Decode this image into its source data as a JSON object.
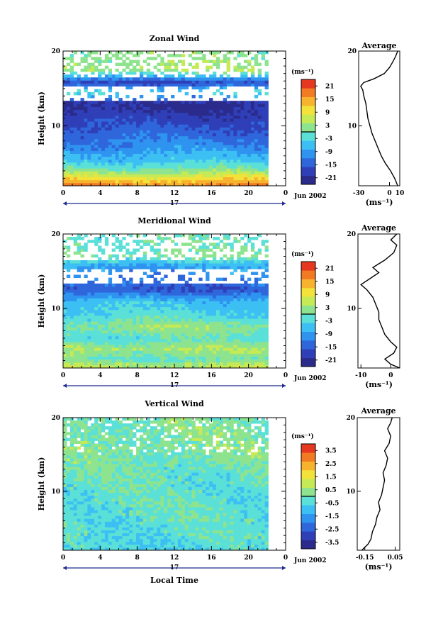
{
  "chart_data": [
    {
      "type": "heatmap",
      "title": "Zonal Wind",
      "xlabel": "",
      "ylabel": "Height (km)",
      "x_ticks": [
        "0",
        "4",
        "8",
        "12",
        "16",
        "20",
        "0"
      ],
      "y_ticks": [
        "10",
        "20"
      ],
      "xlim": [
        0,
        24
      ],
      "ylim": [
        2,
        20
      ],
      "date_day": "17",
      "date_label": "Jun 2002",
      "colorbar": {
        "unit_label": "(ms⁻¹)",
        "ticks": [
          "21",
          "15",
          "9",
          "3",
          "-3",
          "-9",
          "-15",
          "-21"
        ],
        "range": [
          -24,
          24
        ]
      },
      "data_gaps_hours": [
        [
          8.6,
          8.8
        ],
        [
          9.6,
          9.85
        ]
      ],
      "field_layers": [
        {
          "h": 19.5,
          "v": 2
        },
        {
          "h": 17.5,
          "v": 4
        },
        {
          "h": 15.8,
          "v": -18
        },
        {
          "h": 14.5,
          "v": -2
        },
        {
          "h": 13.0,
          "v": -22
        },
        {
          "h": 11.0,
          "v": -18
        },
        {
          "h": 9.0,
          "v": -14
        },
        {
          "h": 7.0,
          "v": -10
        },
        {
          "h": 5.3,
          "v": -5
        },
        {
          "h": 4.0,
          "v": 2
        },
        {
          "h": 3.0,
          "v": 10
        },
        {
          "h": 2.2,
          "v": 16
        }
      ],
      "average_panel": {
        "title": "Average",
        "xlabel": "(ms⁻¹)",
        "x_ticks": [
          "-30",
          "0",
          "10"
        ],
        "y_ticks": [
          "10",
          "20"
        ],
        "xlim": [
          -30,
          10
        ],
        "ylim": [
          2,
          20
        ],
        "profile": [
          {
            "height": 2.0,
            "value": 8
          },
          {
            "height": 3.0,
            "value": 5
          },
          {
            "height": 4.0,
            "value": 1
          },
          {
            "height": 5.0,
            "value": -4
          },
          {
            "height": 6.0,
            "value": -8
          },
          {
            "height": 7.0,
            "value": -11
          },
          {
            "height": 8.0,
            "value": -14
          },
          {
            "height": 9.0,
            "value": -17
          },
          {
            "height": 10.0,
            "value": -19
          },
          {
            "height": 11.0,
            "value": -21
          },
          {
            "height": 12.0,
            "value": -22
          },
          {
            "height": 13.0,
            "value": -23
          },
          {
            "height": 14.0,
            "value": -25
          },
          {
            "height": 14.8,
            "value": -26
          },
          {
            "height": 15.3,
            "value": -28
          },
          {
            "height": 15.8,
            "value": -25
          },
          {
            "height": 16.3,
            "value": -15
          },
          {
            "height": 17.0,
            "value": -5
          },
          {
            "height": 17.8,
            "value": 0
          },
          {
            "height": 18.5,
            "value": 3
          },
          {
            "height": 19.3,
            "value": 6
          },
          {
            "height": 20.0,
            "value": 8
          }
        ]
      }
    },
    {
      "type": "heatmap",
      "title": "Meridional Wind",
      "xlabel": "",
      "ylabel": "Height (km)",
      "x_ticks": [
        "0",
        "4",
        "8",
        "12",
        "16",
        "20",
        "0"
      ],
      "y_ticks": [
        "10",
        "20"
      ],
      "xlim": [
        0,
        24
      ],
      "ylim": [
        2,
        20
      ],
      "date_day": "17",
      "date_label": "Jun 2002",
      "colorbar": {
        "unit_label": "(ms⁻¹)",
        "ticks": [
          "21",
          "15",
          "9",
          "3",
          "-3",
          "-9",
          "-15",
          "-21"
        ],
        "range": [
          -24,
          24
        ]
      },
      "data_gaps_hours": [
        [
          8.6,
          8.8
        ],
        [
          9.6,
          9.85
        ]
      ],
      "field_layers": [
        {
          "h": 19.0,
          "v": -1
        },
        {
          "h": 17.0,
          "v": 1
        },
        {
          "h": 15.8,
          "v": -8
        },
        {
          "h": 14.0,
          "v": -12
        },
        {
          "h": 12.5,
          "v": -16
        },
        {
          "h": 11.0,
          "v": -6
        },
        {
          "h": 9.0,
          "v": -3
        },
        {
          "h": 7.5,
          "v": 3
        },
        {
          "h": 6.0,
          "v": -2
        },
        {
          "h": 4.5,
          "v": 4
        },
        {
          "h": 3.2,
          "v": -1
        },
        {
          "h": 2.4,
          "v": 5
        }
      ],
      "average_panel": {
        "title": "Average",
        "xlabel": "(ms⁻¹)",
        "x_ticks": [
          "-10",
          "0"
        ],
        "y_ticks": [
          "10",
          "20"
        ],
        "xlim": [
          -11,
          3
        ],
        "ylim": [
          2,
          20
        ],
        "profile": [
          {
            "height": 2.0,
            "value": 3
          },
          {
            "height": 2.5,
            "value": 0
          },
          {
            "height": 3.2,
            "value": -2
          },
          {
            "height": 4.0,
            "value": 1
          },
          {
            "height": 4.8,
            "value": 2
          },
          {
            "height": 5.5,
            "value": 0
          },
          {
            "height": 6.5,
            "value": -2
          },
          {
            "height": 7.5,
            "value": -3
          },
          {
            "height": 8.5,
            "value": -4
          },
          {
            "height": 9.5,
            "value": -4
          },
          {
            "height": 10.5,
            "value": -5
          },
          {
            "height": 11.5,
            "value": -6
          },
          {
            "height": 12.5,
            "value": -8
          },
          {
            "height": 13.2,
            "value": -10
          },
          {
            "height": 14.0,
            "value": -7
          },
          {
            "height": 14.8,
            "value": -4
          },
          {
            "height": 15.5,
            "value": -6
          },
          {
            "height": 16.5,
            "value": -2
          },
          {
            "height": 17.5,
            "value": 1
          },
          {
            "height": 18.5,
            "value": 2
          },
          {
            "height": 19.2,
            "value": 0
          },
          {
            "height": 20.0,
            "value": 2
          }
        ]
      }
    },
    {
      "type": "heatmap",
      "title": "Vertical Wind",
      "xlabel": "Local Time",
      "ylabel": "Height (km)",
      "x_ticks": [
        "0",
        "4",
        "8",
        "12",
        "16",
        "20",
        "0"
      ],
      "y_ticks": [
        "10",
        "20"
      ],
      "xlim": [
        0,
        24
      ],
      "ylim": [
        2,
        20
      ],
      "date_day": "17",
      "date_label": "Jun 2002",
      "colorbar": {
        "unit_label": "(ms⁻¹)",
        "ticks": [
          "3.5",
          "2.5",
          "1.5",
          "0.5",
          "-0.5",
          "-1.5",
          "-2.5",
          "-3.5"
        ],
        "range": [
          -4,
          4
        ]
      },
      "data_gaps_hours": [
        [
          8.6,
          8.8
        ],
        [
          9.6,
          9.85
        ]
      ],
      "field_layers": [
        {
          "h": 19.0,
          "v": 0.1
        },
        {
          "h": 16.0,
          "v": 0.2
        },
        {
          "h": 13.0,
          "v": -0.1
        },
        {
          "h": 10.0,
          "v": -0.3
        },
        {
          "h": 7.0,
          "v": -0.2
        },
        {
          "h": 4.0,
          "v": -0.4
        },
        {
          "h": 2.5,
          "v": -0.6
        }
      ],
      "average_panel": {
        "title": "Average",
        "xlabel": "(ms⁻¹)",
        "x_ticks": [
          "-0.15",
          "0.05"
        ],
        "y_ticks": [
          "10",
          "20"
        ],
        "xlim": [
          -0.2,
          0.08
        ],
        "ylim": [
          2,
          20
        ],
        "profile": [
          {
            "height": 2.0,
            "value": -0.17
          },
          {
            "height": 2.8,
            "value": -0.13
          },
          {
            "height": 3.5,
            "value": -0.11
          },
          {
            "height": 4.5,
            "value": -0.1
          },
          {
            "height": 5.5,
            "value": -0.08
          },
          {
            "height": 6.5,
            "value": -0.07
          },
          {
            "height": 7.5,
            "value": -0.05
          },
          {
            "height": 8.5,
            "value": -0.06
          },
          {
            "height": 9.5,
            "value": -0.04
          },
          {
            "height": 10.5,
            "value": -0.03
          },
          {
            "height": 11.5,
            "value": -0.02
          },
          {
            "height": 12.5,
            "value": -0.03
          },
          {
            "height": 13.5,
            "value": -0.01
          },
          {
            "height": 14.5,
            "value": 0.0
          },
          {
            "height": 15.5,
            "value": -0.02
          },
          {
            "height": 16.5,
            "value": 0.01
          },
          {
            "height": 17.5,
            "value": 0.02
          },
          {
            "height": 18.5,
            "value": 0.0
          },
          {
            "height": 19.3,
            "value": 0.02
          },
          {
            "height": 20.0,
            "value": 0.03
          }
        ]
      }
    }
  ]
}
